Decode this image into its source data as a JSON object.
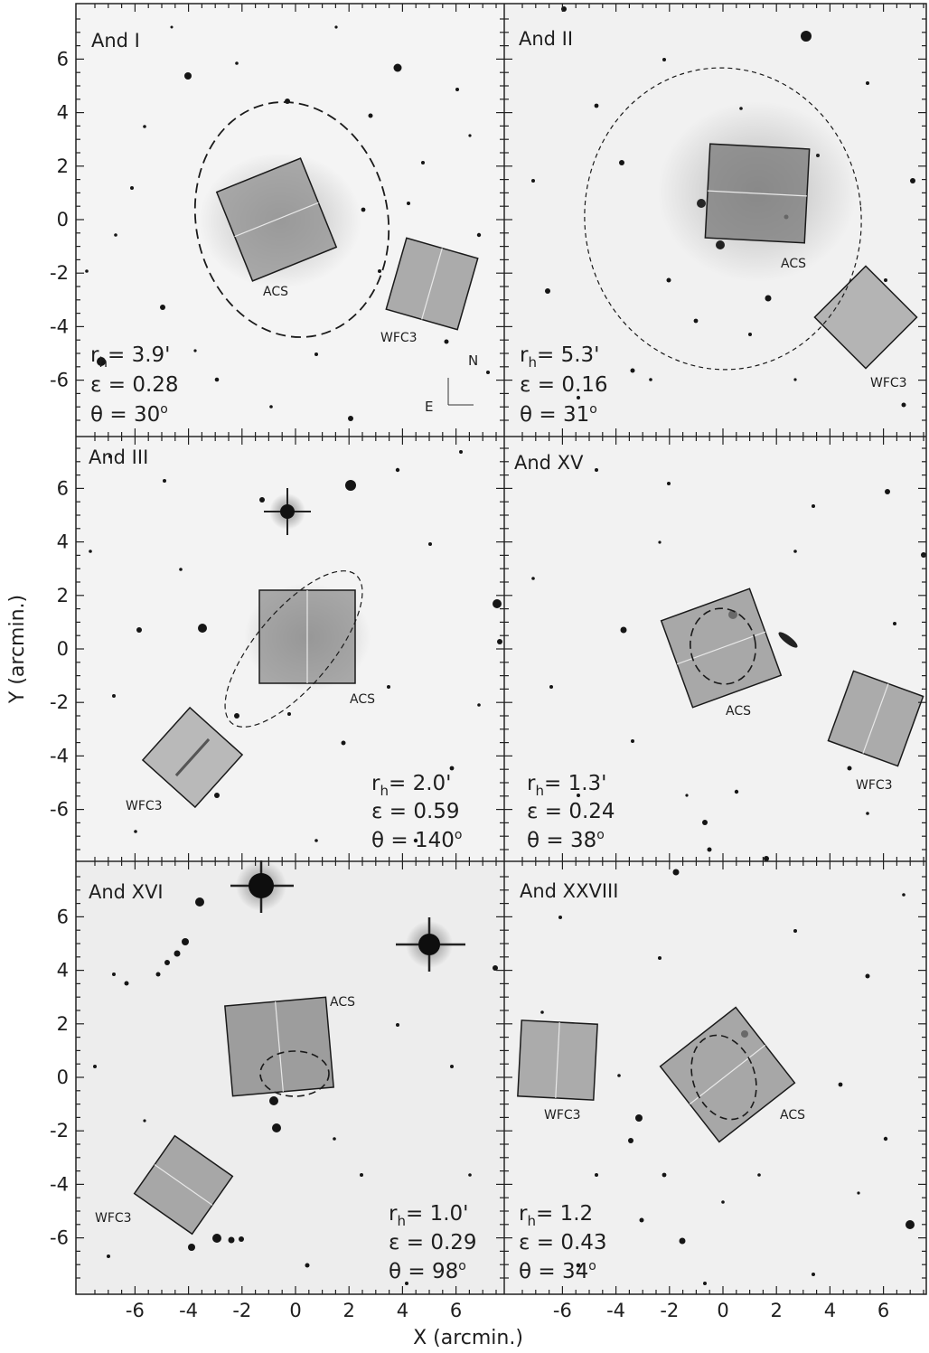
{
  "figure": {
    "x_axis_label": "X (arcmin.)",
    "y_axis_label": "Y (arcmin.)",
    "x_ticks": [
      "-6",
      "-4",
      "-2",
      "0",
      "2",
      "4",
      "6"
    ],
    "y_ticks": [
      "6",
      "4",
      "2",
      "0",
      "-2",
      "-4",
      "-6"
    ],
    "compass": {
      "north": "N",
      "east": "E"
    }
  },
  "panels": [
    {
      "name": "And I",
      "rh_prefix": "r",
      "rh_sub": "h",
      "rh_value": "= 3.9'",
      "ellipticity": "ε = 0.28",
      "theta_text": "θ = 30",
      "theta_sup": "o",
      "acs_label": "ACS",
      "wfc3_label": "WFC3"
    },
    {
      "name": "And II",
      "rh_prefix": "r",
      "rh_sub": "h",
      "rh_value": "= 5.3'",
      "ellipticity": "ε = 0.16",
      "theta_text": "θ = 31",
      "theta_sup": "o",
      "acs_label": "ACS",
      "wfc3_label": "WFC3"
    },
    {
      "name": "And III",
      "rh_prefix": "r",
      "rh_sub": "h",
      "rh_value": "= 2.0'",
      "ellipticity": "ε = 0.59",
      "theta_text": "θ = 140",
      "theta_sup": "o",
      "acs_label": "ACS",
      "wfc3_label": "WFC3"
    },
    {
      "name": "And XV",
      "rh_prefix": "r",
      "rh_sub": "h",
      "rh_value": "= 1.3'",
      "ellipticity": "ε = 0.24",
      "theta_text": "θ = 38",
      "theta_sup": "o",
      "acs_label": "ACS",
      "wfc3_label": "WFC3"
    },
    {
      "name": "And XVI",
      "rh_prefix": "r",
      "rh_sub": "h",
      "rh_value": "= 1.0'",
      "ellipticity": "ε = 0.29",
      "theta_text": "θ = 98",
      "theta_sup": "o",
      "acs_label": "ACS",
      "wfc3_label": "WFC3"
    },
    {
      "name": "And XXVIII",
      "rh_prefix": "r",
      "rh_sub": "h",
      "rh_value": "= 1.2",
      "ellipticity": "ε = 0.43",
      "theta_text": "θ = 34",
      "theta_sup": "o",
      "acs_label": "ACS",
      "wfc3_label": "WFC3"
    }
  ]
}
